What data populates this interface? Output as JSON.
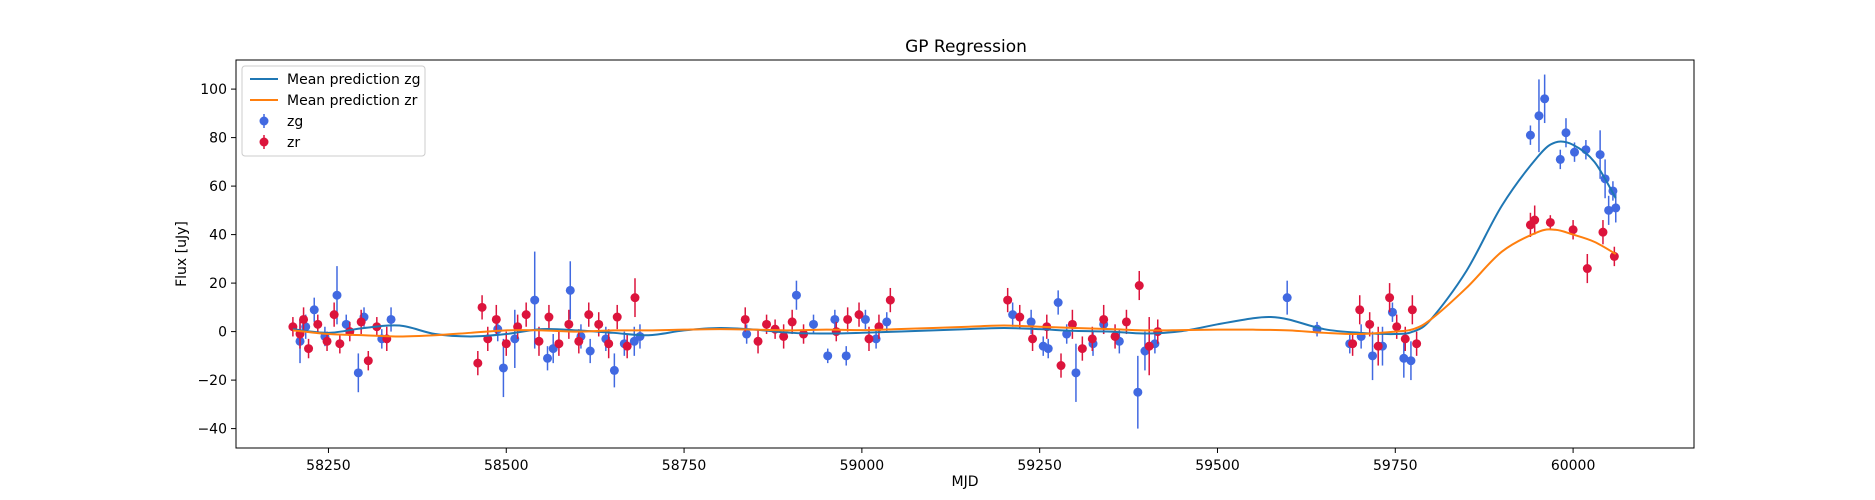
{
  "chart_data": {
    "type": "scatter",
    "title": "GP Regression",
    "xlabel": "MJD",
    "ylabel": "Flux [uJy]",
    "xlim": [
      58120,
      60170
    ],
    "ylim": [
      -48,
      112
    ],
    "xticks": [
      58250,
      58500,
      58750,
      59000,
      59250,
      59500,
      59750,
      60000
    ],
    "yticks": [
      -40,
      -20,
      0,
      20,
      40,
      60,
      80,
      100
    ],
    "legend_position": "upper-left",
    "legend": [
      "Mean prediction zg",
      "Mean prediction zr",
      "zg",
      "zr"
    ],
    "colors": {
      "mean_zg": "#1f77b4",
      "mean_zr": "#ff7f0e",
      "zg": "#4169e1",
      "zr": "#dc143c"
    },
    "lines": [
      {
        "name": "Mean prediction zg",
        "color": "#1f77b4",
        "x": [
          58200,
          58250,
          58300,
          58350,
          58400,
          58450,
          58500,
          58550,
          58600,
          58650,
          58700,
          58750,
          58800,
          58850,
          58900,
          58950,
          59000,
          59050,
          59100,
          59150,
          59200,
          59250,
          59300,
          59350,
          59400,
          59450,
          59500,
          59550,
          59575,
          59600,
          59650,
          59700,
          59750,
          59775,
          59800,
          59850,
          59900,
          59950,
          59975,
          60000,
          60030,
          60060
        ],
        "y": [
          1,
          -0.5,
          1.5,
          2.5,
          -1,
          -2,
          -1,
          1,
          0.5,
          -0.5,
          -1.5,
          0.5,
          1.5,
          0.8,
          -0.5,
          -0.8,
          -0.5,
          0,
          0.5,
          1,
          1.5,
          1,
          0.3,
          0,
          -0.8,
          0.2,
          3,
          5.5,
          6,
          5,
          1,
          -0.5,
          -1,
          0,
          5,
          25,
          52,
          72,
          78,
          77,
          70,
          55
        ]
      },
      {
        "name": "Mean prediction zr",
        "color": "#ff7f0e",
        "x": [
          58200,
          58250,
          58300,
          58350,
          58400,
          58450,
          58500,
          58550,
          58600,
          58650,
          58700,
          58750,
          58800,
          58850,
          58900,
          58950,
          59000,
          59050,
          59100,
          59150,
          59200,
          59250,
          59300,
          59350,
          59400,
          59450,
          59500,
          59550,
          59600,
          59650,
          59700,
          59750,
          59775,
          59800,
          59850,
          59900,
          59950,
          59975,
          60000,
          60030,
          60060
        ],
        "y": [
          0.5,
          -1,
          -1.5,
          -2,
          -1.5,
          -0.5,
          0.5,
          0.5,
          0,
          0.5,
          0.5,
          0.8,
          1,
          0.8,
          0.5,
          0.8,
          0.6,
          1,
          1.5,
          2,
          2.5,
          2,
          1.5,
          1,
          0.5,
          0.6,
          0.8,
          0.8,
          0.5,
          -0.5,
          -1,
          0,
          1,
          5,
          18,
          33,
          41,
          42,
          40,
          37,
          32
        ]
      }
    ],
    "series": [
      {
        "name": "zg",
        "color": "#4169e1",
        "x": [
          58210,
          58218,
          58230,
          58245,
          58262,
          58275,
          58292,
          58300,
          58325,
          58338,
          58488,
          58496,
          58512,
          58540,
          58558,
          58566,
          58590,
          58605,
          58618,
          58640,
          58652,
          58666,
          58680,
          58688,
          58838,
          58908,
          58932,
          58952,
          58962,
          58978,
          59005,
          59020,
          59035,
          59212,
          59238,
          59255,
          59262,
          59276,
          59288,
          59301,
          59325,
          59340,
          59362,
          59388,
          59398,
          59412,
          59598,
          59640,
          59686,
          59702,
          59718,
          59732,
          59746,
          59762,
          59772,
          59940,
          59952,
          59960,
          59982,
          59990,
          60002,
          60018,
          60038,
          60045,
          60050,
          60056,
          60060
        ],
        "y": [
          -4,
          2,
          9,
          -2,
          15,
          3,
          -17,
          6,
          -3,
          5,
          1,
          -15,
          -3,
          13,
          -11,
          -7,
          17,
          -2,
          -8,
          -3,
          -16,
          -5,
          -4,
          -2,
          -1,
          15,
          3,
          -10,
          5,
          -10,
          5,
          -3,
          4,
          7,
          4,
          -6,
          -7,
          12,
          -1,
          -17,
          -5,
          3,
          -4,
          -25,
          -8,
          -5,
          14,
          1,
          -5,
          -2,
          -10,
          -6,
          8,
          -11,
          -12,
          81,
          89,
          96,
          71,
          82,
          74,
          75,
          73,
          63,
          50,
          58,
          51
        ],
        "err": [
          9,
          5,
          5,
          4,
          12,
          4,
          8,
          4,
          4,
          5,
          5,
          12,
          12,
          20,
          5,
          6,
          12,
          5,
          5,
          5,
          7,
          5,
          6,
          5,
          4,
          6,
          4,
          3,
          4,
          4,
          4,
          4,
          4,
          5,
          5,
          4,
          4,
          5,
          4,
          12,
          5,
          4,
          5,
          15,
          8,
          4,
          7,
          3,
          4,
          5,
          10,
          8,
          4,
          8,
          8,
          4,
          15,
          10,
          4,
          6,
          4,
          4,
          10,
          8,
          6,
          4,
          6
        ]
      },
      {
        "name": "zr",
        "color": "#dc143c",
        "x": [
          58200,
          58210,
          58215,
          58222,
          58235,
          58248,
          58258,
          58266,
          58280,
          58296,
          58306,
          58318,
          58332,
          58460,
          58466,
          58474,
          58486,
          58500,
          58516,
          58528,
          58546,
          58560,
          58574,
          58588,
          58602,
          58616,
          58630,
          58644,
          58656,
          58670,
          58681,
          58836,
          58854,
          58866,
          58878,
          58890,
          58902,
          58918,
          58964,
          58980,
          58996,
          59010,
          59024,
          59040,
          59205,
          59222,
          59240,
          59260,
          59280,
          59296,
          59310,
          59324,
          59340,
          59356,
          59372,
          59390,
          59404,
          59416,
          59690,
          59700,
          59714,
          59726,
          59742,
          59752,
          59764,
          59774,
          59780,
          59940,
          59946,
          59968,
          60000,
          60020,
          60042,
          60058
        ],
        "y": [
          2,
          -1,
          5,
          -7,
          3,
          -4,
          7,
          -5,
          0,
          4,
          -12,
          2,
          -3,
          -13,
          10,
          -3,
          5,
          -5,
          2,
          7,
          -4,
          6,
          -5,
          3,
          -4,
          7,
          3,
          -5,
          6,
          -6,
          14,
          5,
          -4,
          3,
          1,
          -2,
          4,
          -1,
          0,
          5,
          7,
          -3,
          2,
          13,
          13,
          6,
          -3,
          2,
          -14,
          3,
          -7,
          -3,
          5,
          -2,
          4,
          19,
          -6,
          0,
          -5,
          9,
          3,
          -6,
          14,
          2,
          -3,
          9,
          -5,
          44,
          46,
          45,
          42,
          26,
          41,
          31
        ],
        "err": [
          4,
          6,
          5,
          4,
          4,
          4,
          5,
          4,
          4,
          5,
          4,
          4,
          5,
          5,
          5,
          5,
          6,
          5,
          5,
          5,
          6,
          5,
          5,
          6,
          5,
          5,
          5,
          6,
          5,
          5,
          8,
          5,
          5,
          4,
          4,
          5,
          5,
          4,
          4,
          5,
          5,
          5,
          5,
          5,
          5,
          5,
          5,
          5,
          5,
          6,
          5,
          5,
          6,
          5,
          5,
          6,
          12,
          5,
          5,
          6,
          5,
          8,
          6,
          5,
          5,
          6,
          5,
          5,
          6,
          3,
          4,
          6,
          5,
          4
        ]
      }
    ]
  }
}
